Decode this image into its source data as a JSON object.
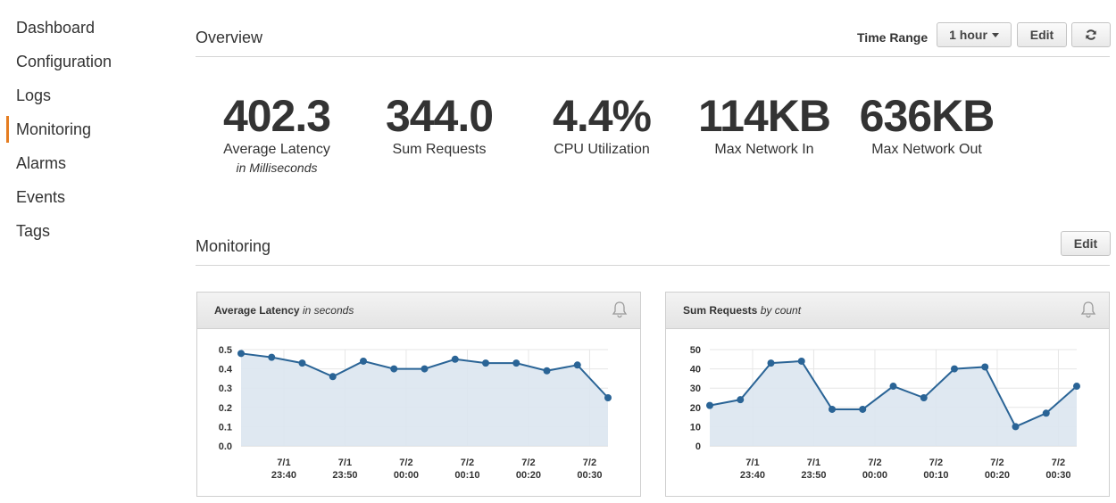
{
  "sidebar": {
    "items": [
      {
        "label": "Dashboard",
        "active": false
      },
      {
        "label": "Configuration",
        "active": false
      },
      {
        "label": "Logs",
        "active": false
      },
      {
        "label": "Monitoring",
        "active": true
      },
      {
        "label": "Alarms",
        "active": false
      },
      {
        "label": "Events",
        "active": false
      },
      {
        "label": "Tags",
        "active": false
      }
    ]
  },
  "overview": {
    "title": "Overview",
    "time_range_label": "Time Range",
    "time_range_value": "1 hour",
    "edit_label": "Edit",
    "refresh_icon": "refresh-icon",
    "stats": [
      {
        "value": "402.3",
        "label": "Average Latency",
        "sub": "in Milliseconds"
      },
      {
        "value": "344.0",
        "label": "Sum Requests",
        "sub": ""
      },
      {
        "value": "4.4%",
        "label": "CPU Utilization",
        "sub": ""
      },
      {
        "value": "114KB",
        "label": "Max Network In",
        "sub": ""
      },
      {
        "value": "636KB",
        "label": "Max Network Out",
        "sub": ""
      }
    ]
  },
  "monitoring": {
    "title": "Monitoring",
    "edit_label": "Edit",
    "panels": [
      {
        "title": "Average Latency",
        "unit": "in seconds",
        "icon": "bell-icon"
      },
      {
        "title": "Sum Requests",
        "unit": "by count",
        "icon": "bell-icon"
      }
    ]
  },
  "colors": {
    "accent": "#e57d21",
    "line": "#2a6496",
    "area_fill": "#dce6f0"
  },
  "chart_data": [
    {
      "type": "area",
      "title": "Average Latency",
      "subtitle": "in seconds",
      "ylim": [
        0,
        0.5
      ],
      "yticks": [
        0,
        0.1,
        0.2,
        0.3,
        0.4,
        0.5
      ],
      "ytick_labels": [
        "0.0",
        "0.1",
        "0.2",
        "0.3",
        "0.4",
        "0.5"
      ],
      "x_minutes": [
        0,
        5,
        10,
        15,
        20,
        25,
        30,
        35,
        40,
        45,
        50,
        55,
        60
      ],
      "xticks_minutes": [
        7,
        17,
        27,
        37,
        47,
        57
      ],
      "xtick_labels": [
        [
          "7/1",
          "23:40"
        ],
        [
          "7/1",
          "23:50"
        ],
        [
          "7/2",
          "00:00"
        ],
        [
          "7/2",
          "00:10"
        ],
        [
          "7/2",
          "00:20"
        ],
        [
          "7/2",
          "00:30"
        ]
      ],
      "series": [
        {
          "values": [
            0.48,
            0.46,
            0.43,
            0.36,
            0.44,
            0.4,
            0.4,
            0.45,
            0.43,
            0.43,
            0.39,
            0.42,
            0.25
          ]
        }
      ],
      "grid": true
    },
    {
      "type": "area",
      "title": "Sum Requests",
      "subtitle": "by count",
      "ylim": [
        0,
        50
      ],
      "yticks": [
        0,
        10,
        20,
        30,
        40,
        50
      ],
      "ytick_labels": [
        "0",
        "10",
        "20",
        "30",
        "40",
        "50"
      ],
      "x_minutes": [
        0,
        5,
        10,
        15,
        20,
        25,
        30,
        35,
        40,
        45,
        50,
        55,
        60
      ],
      "xticks_minutes": [
        7,
        17,
        27,
        37,
        47,
        57
      ],
      "xtick_labels": [
        [
          "7/1",
          "23:40"
        ],
        [
          "7/1",
          "23:50"
        ],
        [
          "7/2",
          "00:00"
        ],
        [
          "7/2",
          "00:10"
        ],
        [
          "7/2",
          "00:20"
        ],
        [
          "7/2",
          "00:30"
        ]
      ],
      "series": [
        {
          "values": [
            21,
            24,
            43,
            44,
            19,
            19,
            31,
            25,
            40,
            41,
            10,
            17,
            31
          ]
        }
      ],
      "grid": true
    }
  ]
}
